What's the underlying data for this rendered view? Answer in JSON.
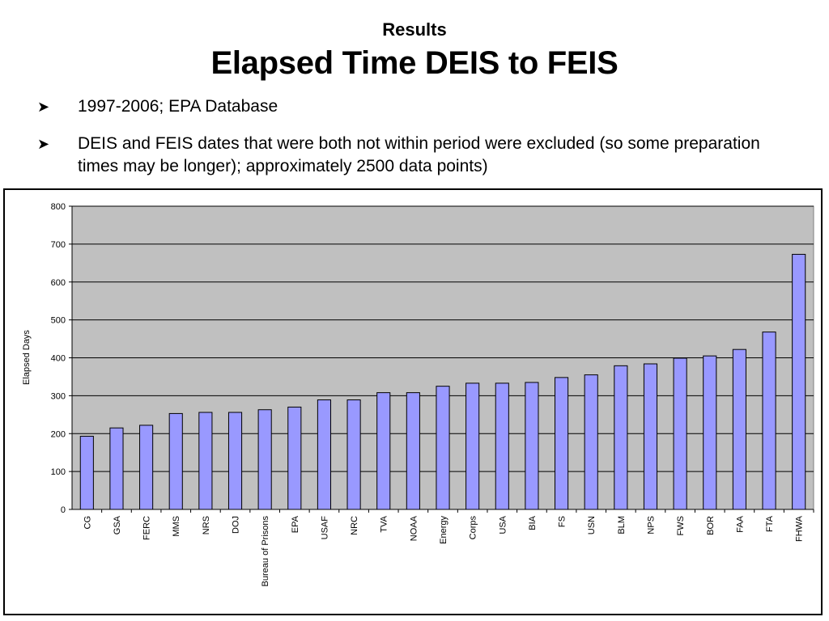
{
  "slide": {
    "subtitle": "Results",
    "title": "Elapsed Time DEIS to FEIS",
    "bullets": [
      "1997-2006; EPA Database",
      "DEIS and FEIS dates that were both not within period were excluded (so some preparation times may be longer); approximately 2500 data points)"
    ]
  },
  "chart_data": {
    "type": "bar",
    "title": "",
    "xlabel": "",
    "ylabel": "Elapsed Days",
    "ylim": [
      0,
      800
    ],
    "yticks": [
      0,
      100,
      200,
      300,
      400,
      500,
      600,
      700,
      800
    ],
    "grid": true,
    "legend": "none",
    "colors": {
      "bar": "#9999ff",
      "plot_bg": "#c0c0c0",
      "grid": "#000000"
    },
    "categories": [
      "CG",
      "GSA",
      "FERC",
      "MMS",
      "NRS",
      "DOJ",
      "Bureau of Prisons",
      "EPA",
      "USAF",
      "NRC",
      "TVA",
      "NOAA",
      "Energy",
      "Corps",
      "USA",
      "BIA",
      "FS",
      "USN",
      "BLM",
      "NPS",
      "FWS",
      "BOR",
      "FAA",
      "FTA",
      "FHWA"
    ],
    "values": [
      193,
      215,
      222,
      253,
      256,
      256,
      263,
      270,
      289,
      289,
      308,
      308,
      325,
      333,
      333,
      335,
      348,
      355,
      379,
      384,
      399,
      405,
      422,
      468,
      673
    ]
  }
}
